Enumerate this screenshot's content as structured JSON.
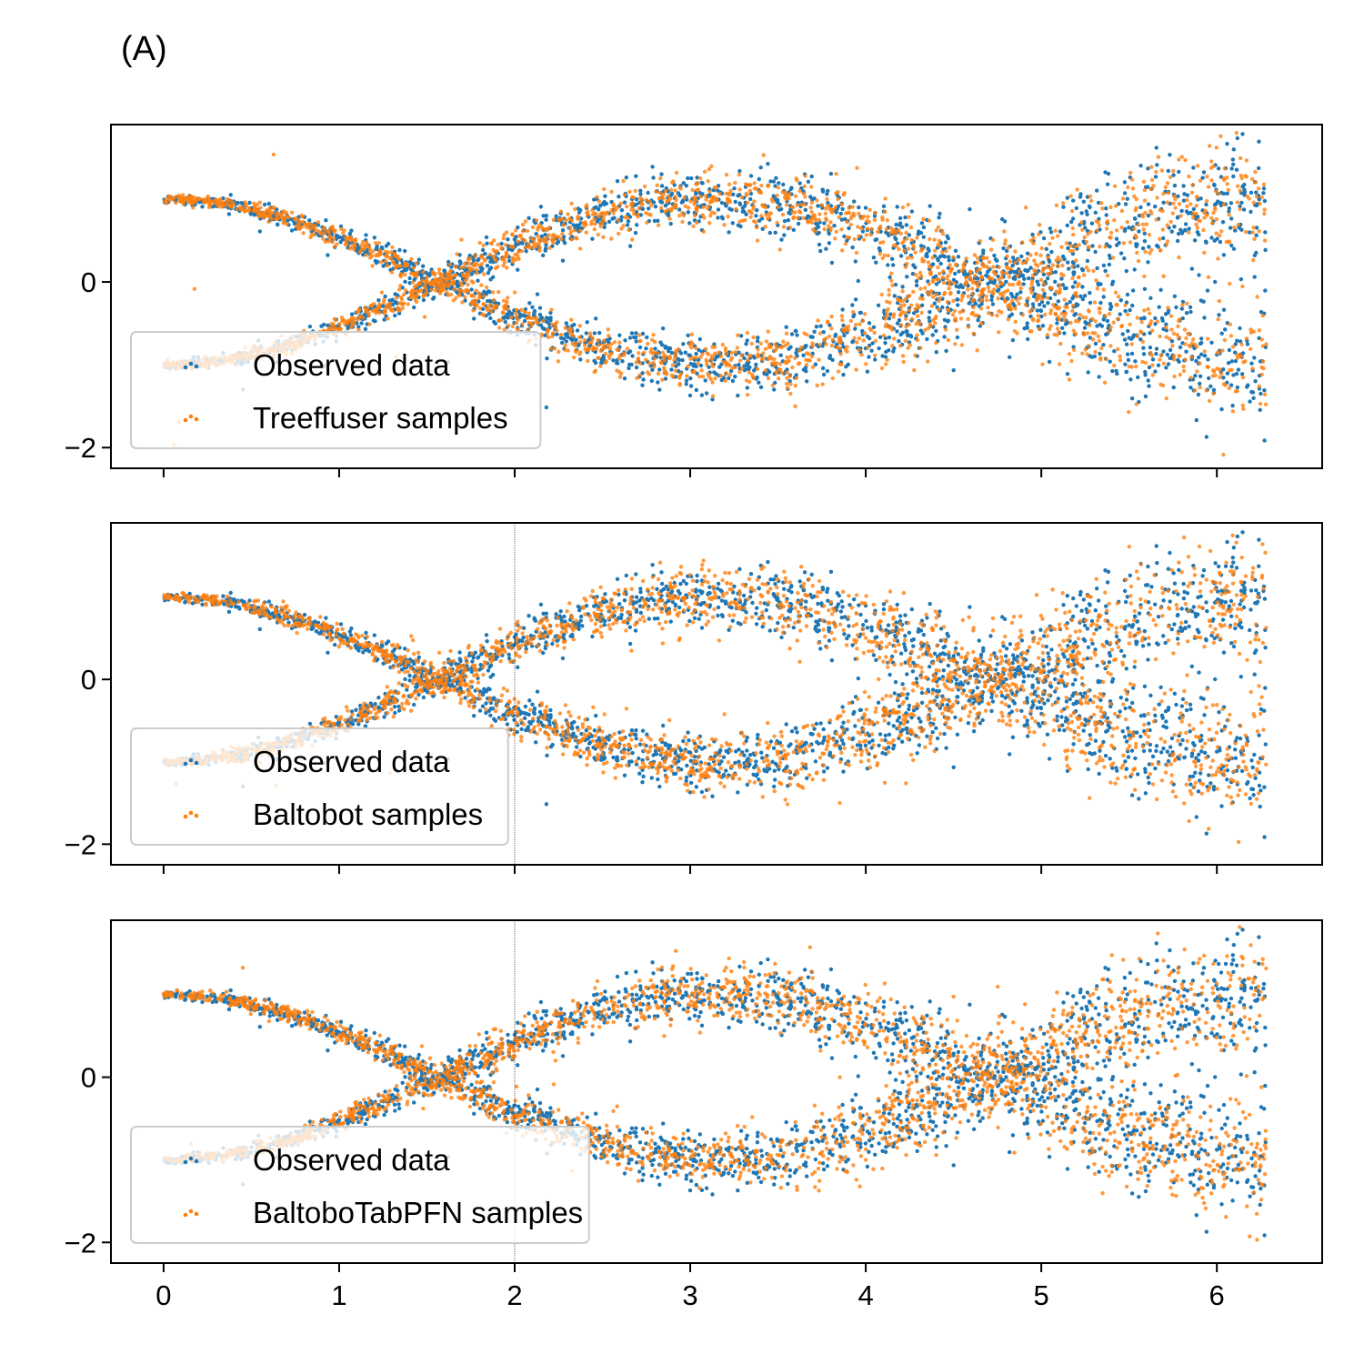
{
  "figure": {
    "panel_label": "(A)"
  },
  "chart_data": [
    {
      "type": "scatter",
      "panel": 1,
      "xlim": [
        -0.3,
        6.6
      ],
      "ylim": [
        -2.25,
        1.9
      ],
      "xticks": [
        0,
        1,
        2,
        3,
        4,
        5,
        6
      ],
      "yticks": [
        0,
        -2
      ],
      "xtick_labels_visible": false,
      "legend": {
        "placement": "lower-left",
        "entries": [
          "Observed data",
          "Treeffuser samples"
        ]
      },
      "series": [
        {
          "name": "Observed data",
          "color": "#1f77b4",
          "pattern": "two branches y = ±cos(x), x in [0, 2π], noise grows with x (sd ≈ 0.02 at x=0 to ≈ 0.3 at x=6.28), values range ≈ [-2.05, 1.75]"
        },
        {
          "name": "Treeffuser samples",
          "color": "#ff7f0e",
          "pattern": "two branches y = ±cos(x), x in [0, 2π], noise grows with x, closely matching observed data"
        }
      ]
    },
    {
      "type": "scatter",
      "panel": 2,
      "xlim": [
        -0.3,
        6.6
      ],
      "ylim": [
        -2.25,
        1.9
      ],
      "xticks": [
        0,
        1,
        2,
        3,
        4,
        5,
        6
      ],
      "yticks": [
        0,
        -2
      ],
      "xtick_labels_visible": false,
      "legend": {
        "placement": "lower-left",
        "entries": [
          "Observed data",
          "Baltobot samples"
        ]
      },
      "series": [
        {
          "name": "Observed data",
          "color": "#1f77b4",
          "pattern": "two branches y = ±cos(x), x in [0, 2π], noise grows with x"
        },
        {
          "name": "Baltobot samples",
          "color": "#ff7f0e",
          "pattern": "two branches y = ±cos(x), x in [0, 2π], noise grows with x, with more outlying samples"
        }
      ]
    },
    {
      "type": "scatter",
      "panel": 3,
      "xlim": [
        -0.3,
        6.6
      ],
      "ylim": [
        -2.25,
        1.9
      ],
      "xticks": [
        0,
        1,
        2,
        3,
        4,
        5,
        6
      ],
      "yticks": [
        0,
        -2
      ],
      "xtick_labels_visible": true,
      "legend": {
        "placement": "lower-left",
        "entries": [
          "Observed data",
          "BaltoboTabPFN samples"
        ]
      },
      "series": [
        {
          "name": "Observed data",
          "color": "#1f77b4",
          "pattern": "two branches y = ±cos(x), x in [0, 2π], noise grows with x"
        },
        {
          "name": "BaltoboTabPFN samples",
          "color": "#ff7f0e",
          "pattern": "two branches y = ±cos(x), x in [0, 2π], noise grows with x, closely matching observed data"
        }
      ]
    }
  ],
  "tick_labels": {
    "x": [
      "0",
      "1",
      "2",
      "3",
      "4",
      "5",
      "6"
    ],
    "y": [
      "0",
      "−2"
    ]
  },
  "colors": {
    "observed": "#1f77b4",
    "samples": "#ff7f0e"
  }
}
